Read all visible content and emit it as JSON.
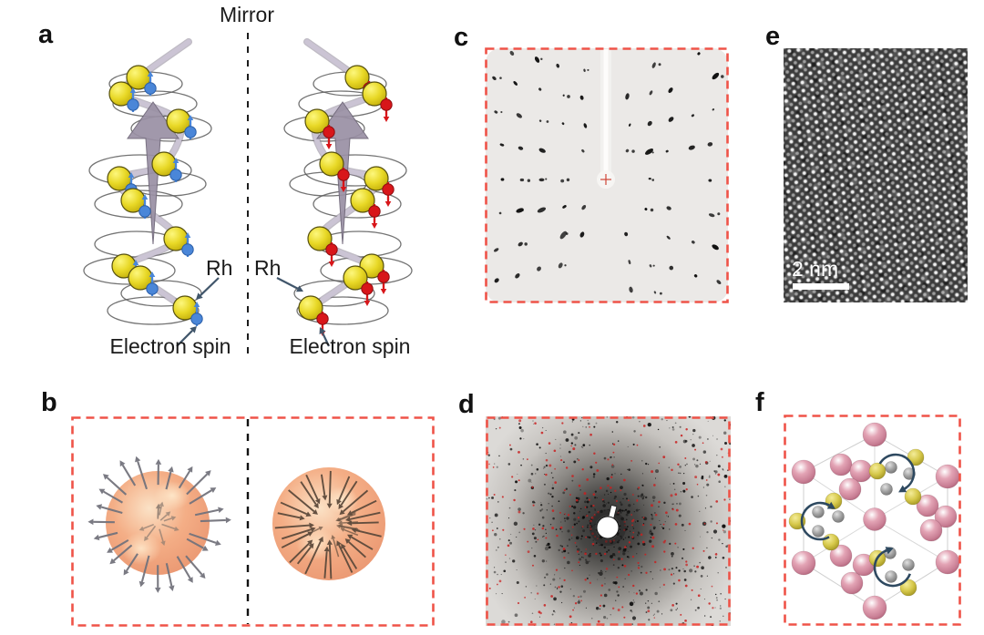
{
  "labels": {
    "a": "a",
    "b": "b",
    "c": "c",
    "d": "d",
    "e": "e",
    "f": "f"
  },
  "panel_a": {
    "mirror": "Mirror",
    "rh_left": "Rh",
    "rh_right": "Rh",
    "electron_spin_left": "Electron spin",
    "electron_spin_right": "Electron spin"
  },
  "panel_e": {
    "scale_bar": "2 nm"
  },
  "colors": {
    "panel_border": "#ef5348",
    "atom_yellow": "#e8d826",
    "spin_up_blue": "#4a86d8",
    "spin_down_red": "#d8161a",
    "helix_arrow_gray": "#9a90a4",
    "helix_tube": "#cbc4d4",
    "sphere_peach": "#f4ae86",
    "outward_arrow_gray": "#73737c",
    "inward_arrow_brown": "#5d4a3b",
    "diffraction_spot": "#101010",
    "center_cross_red": "#cf4537",
    "satellite_red": "#c92020",
    "crystal_pink": "#cf8398",
    "crystal_yellow": "#d6c84a",
    "crystal_gray": "#9e9e9e",
    "rotation_arrow_navy": "#2e4960",
    "annotation_arrow": "#41566b"
  }
}
